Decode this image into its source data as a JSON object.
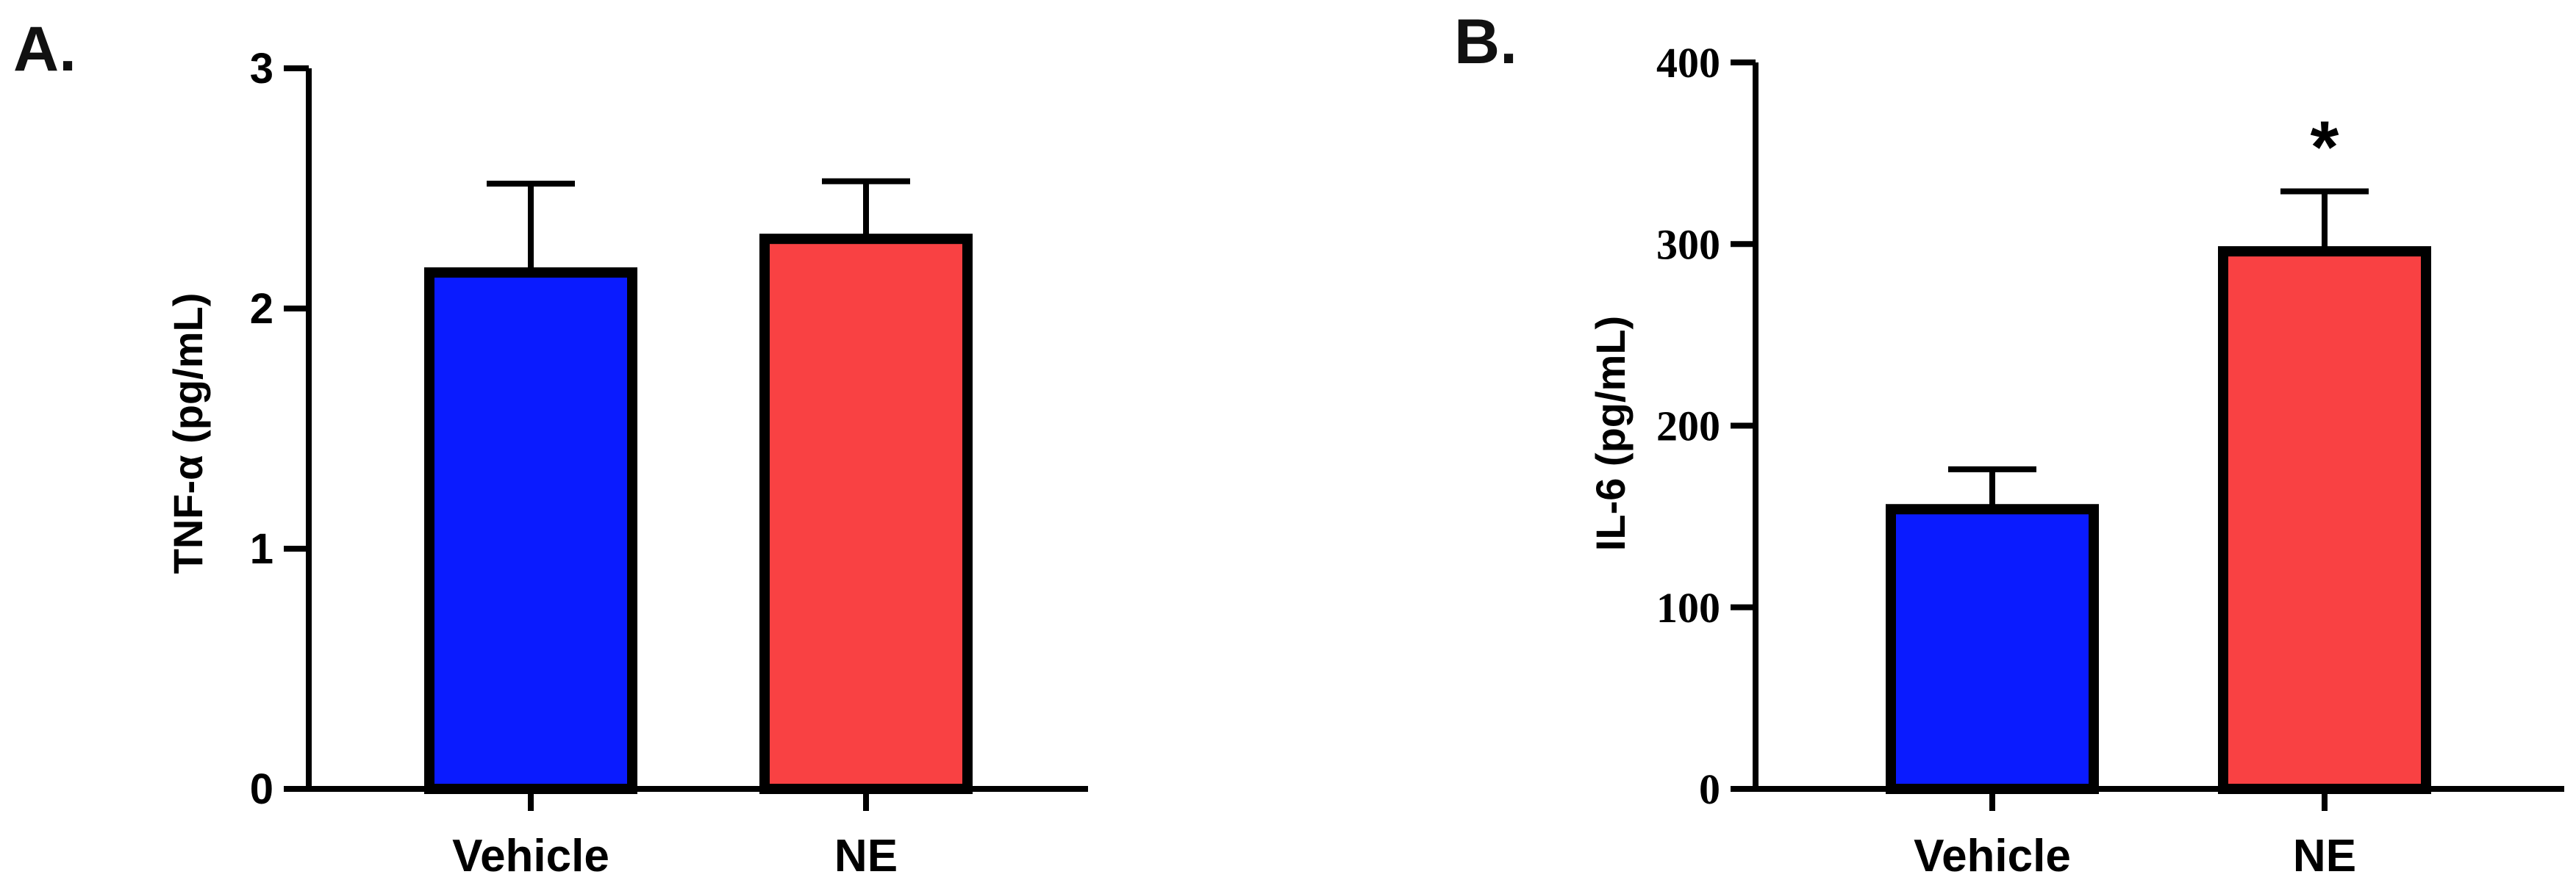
{
  "chart_data": [
    {
      "panel": "A.",
      "type": "bar",
      "categories": [
        "Vehicle",
        "NE"
      ],
      "values": [
        2.15,
        2.29
      ],
      "error_upper": [
        2.52,
        2.53
      ],
      "colors": [
        "#0a1bff",
        "#f94143"
      ],
      "ylabel": "TNF-α (pg/mL)",
      "ylim": [
        0,
        3
      ],
      "yticks": [
        "0",
        "1",
        "2",
        "3"
      ],
      "annotations": []
    },
    {
      "panel": "B.",
      "type": "bar",
      "categories": [
        "Vehicle",
        "NE"
      ],
      "values": [
        154,
        296
      ],
      "error_upper": [
        176,
        329
      ],
      "colors": [
        "#0a1bff",
        "#f94143"
      ],
      "ylabel": "IL-6 (pg/mL)",
      "ylim": [
        0,
        400
      ],
      "yticks": [
        "0",
        "100",
        "200",
        "300",
        "400"
      ],
      "annotations": [
        "",
        "*"
      ]
    }
  ]
}
